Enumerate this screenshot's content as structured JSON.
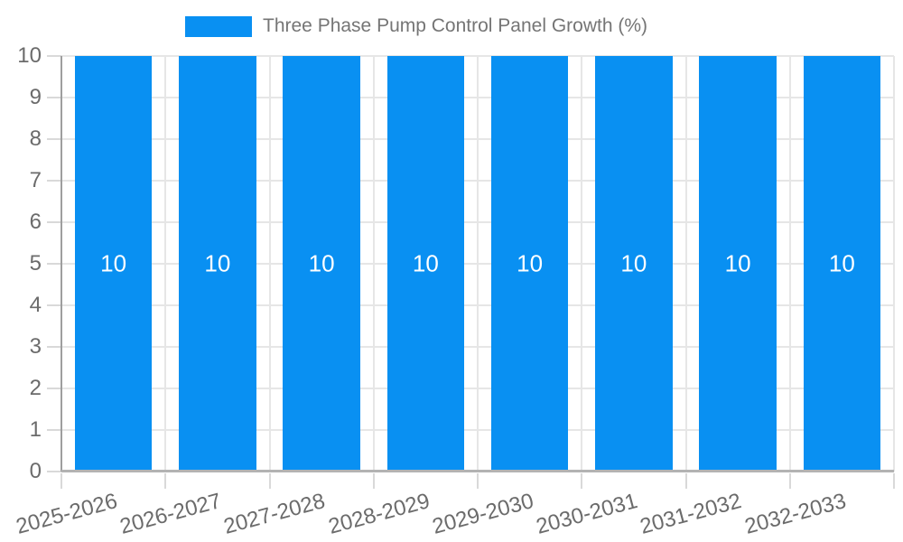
{
  "chart_data": {
    "type": "bar",
    "title": "Three Phase Pump Control Panel Growth (%)",
    "categories": [
      "2025-2026",
      "2026-2027",
      "2027-2028",
      "2028-2029",
      "2029-2030",
      "2030-2031",
      "2031-2032",
      "2032-2033"
    ],
    "series": [
      {
        "name": "Three Phase Pump Control Panel Growth (%)",
        "values": [
          10,
          10,
          10,
          10,
          10,
          10,
          10,
          10
        ]
      }
    ],
    "bar_value_labels": [
      "10",
      "10",
      "10",
      "10",
      "10",
      "10",
      "10",
      "10"
    ],
    "xlabel": "",
    "ylabel": "",
    "ylim": [
      0,
      10
    ],
    "yticks": [
      0,
      1,
      2,
      3,
      4,
      5,
      6,
      7,
      8,
      9,
      10
    ],
    "grid": true,
    "legend_position": "top"
  },
  "legend": {
    "label": "Three Phase Pump Control Panel Growth (%)"
  },
  "colors": {
    "bar": "#0990f2",
    "bar_label": "#ffffff",
    "gridline": "#e6e6e6",
    "x_axis_line": "#b3b3b3",
    "y_axis_line": "#9e9e9e",
    "tick_mark": "#d9d9d9",
    "axis_text": "#6b6b6b",
    "legend_text": "#757575",
    "background": "#ffffff"
  }
}
